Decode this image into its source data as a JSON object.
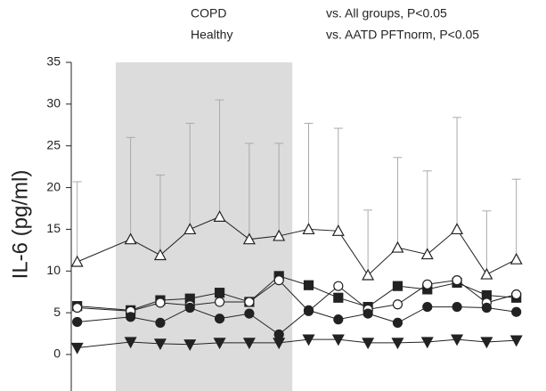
{
  "chart_data": {
    "type": "line",
    "annotations": [
      [
        "COPD",
        "vs.  All groups, P<0.05"
      ],
      [
        "Healthy",
        "vs.  AATD PFTnorm, P<0.05"
      ]
    ],
    "ylabel": "IL-6 (pg/ml)",
    "x": [
      0,
      1.8,
      2.8,
      3.8,
      4.8,
      5.8,
      6.8,
      7.8,
      8.8,
      9.8,
      10.8,
      11.8,
      12.8,
      13.8,
      14.8
    ],
    "xlim": [
      -0.2,
      15.8
    ],
    "shade": [
      1.3,
      7.25
    ],
    "ylim": [
      -4,
      35
    ],
    "yticks": [
      0,
      5,
      10,
      15,
      20,
      25,
      30,
      35
    ],
    "series": [
      {
        "marker": "triangle-up-open",
        "color": "#222222",
        "error_color": "#aaaaaa",
        "values": [
          11.1,
          13.8,
          11.9,
          15,
          16.5,
          13.8,
          14.2,
          15,
          14.8,
          9.5,
          12.8,
          12,
          15,
          9.6,
          11.4
        ],
        "errors": [
          9.6,
          12.2,
          9.6,
          12.7,
          14,
          11.5,
          11.1,
          12.7,
          12.3,
          7.8,
          10.8,
          10,
          13.4,
          7.6,
          9.6
        ]
      },
      {
        "marker": "square-filled",
        "color": "#222222",
        "values": [
          5.8,
          5.3,
          6.5,
          6.7,
          7.4,
          6.3,
          9.4,
          8.3,
          6.8,
          5.7,
          8.2,
          7.8,
          8.6,
          7.1,
          6.8
        ]
      },
      {
        "marker": "circle-open",
        "color": "#222222",
        "values": [
          5.6,
          5.2,
          6.2,
          5.9,
          6.3,
          6.3,
          8.9,
          5.2,
          8.2,
          5.4,
          6.0,
          8.4,
          8.9,
          6.2,
          7.2
        ]
      },
      {
        "marker": "circle-filled",
        "color": "#222222",
        "values": [
          3.9,
          4.5,
          3.8,
          5.6,
          4.3,
          4.9,
          2.4,
          5.3,
          4.2,
          4.9,
          3.8,
          5.7,
          5.7,
          5.6,
          5.1
        ]
      },
      {
        "marker": "triangle-down-filled",
        "color": "#222222",
        "values": [
          0.8,
          1.5,
          1.3,
          1.2,
          1.4,
          1.4,
          1.4,
          1.8,
          1.8,
          1.4,
          1.4,
          1.5,
          1.8,
          1.5,
          1.7
        ]
      }
    ]
  }
}
